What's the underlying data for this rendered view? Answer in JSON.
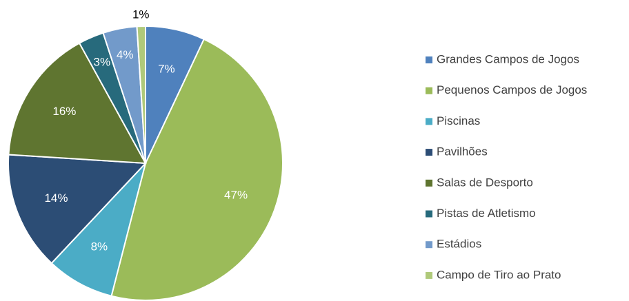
{
  "chart_data": {
    "type": "pie",
    "categories": [
      "Grandes Campos de Jogos",
      "Pequenos Campos de Jogos",
      "Piscinas",
      "Pavilhões",
      "Salas de Desporto",
      "Pistas de Atletismo",
      "Estádios",
      "Campo de Tiro ao Prato"
    ],
    "values": [
      7,
      47,
      8,
      14,
      16,
      3,
      4,
      1
    ],
    "value_labels": [
      "7%",
      "47%",
      "8%",
      "14%",
      "16%",
      "3%",
      "4%",
      "1%"
    ],
    "colors": [
      "#4f81bd",
      "#9bbb59",
      "#4bacc6",
      "#2c4d75",
      "#5f7530",
      "#276a7c",
      "#729aca",
      "#afc97a"
    ],
    "legend": "right"
  }
}
